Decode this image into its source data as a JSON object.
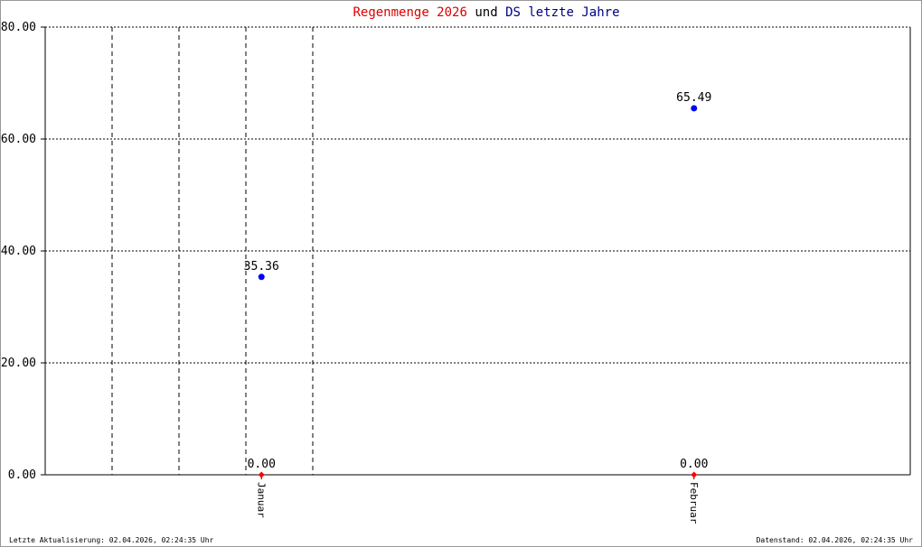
{
  "chart_data": {
    "type": "scatter",
    "title": [
      "Regenmenge 2026",
      "und",
      "DS letzte Jahre"
    ],
    "categories": [
      "Januar",
      "Februar"
    ],
    "series": [
      {
        "name": "Regenmenge 2026",
        "color": "#ff0000",
        "values": [
          0,
          0
        ],
        "value_labels": [
          "0.00",
          "0.00"
        ]
      },
      {
        "name": "DS letzte Jahre",
        "color": "#0000ff",
        "values": [
          35.36,
          65.49
        ]
      }
    ],
    "ylim": [
      0,
      80
    ],
    "yticks": [
      {
        "value": 0,
        "label": "0.00"
      },
      {
        "value": 20,
        "label": "20.00"
      },
      {
        "value": 40,
        "label": "40.00"
      },
      {
        "value": 60,
        "label": "60.00"
      },
      {
        "value": 80,
        "label": "80.00"
      }
    ],
    "grid": true
  },
  "footer": {
    "left": "Letzte Aktualisierung: 02.04.2026, 02:24:35 Uhr",
    "right": "Datenstand: 02.04.2026, 02:24:35 Uhr"
  }
}
